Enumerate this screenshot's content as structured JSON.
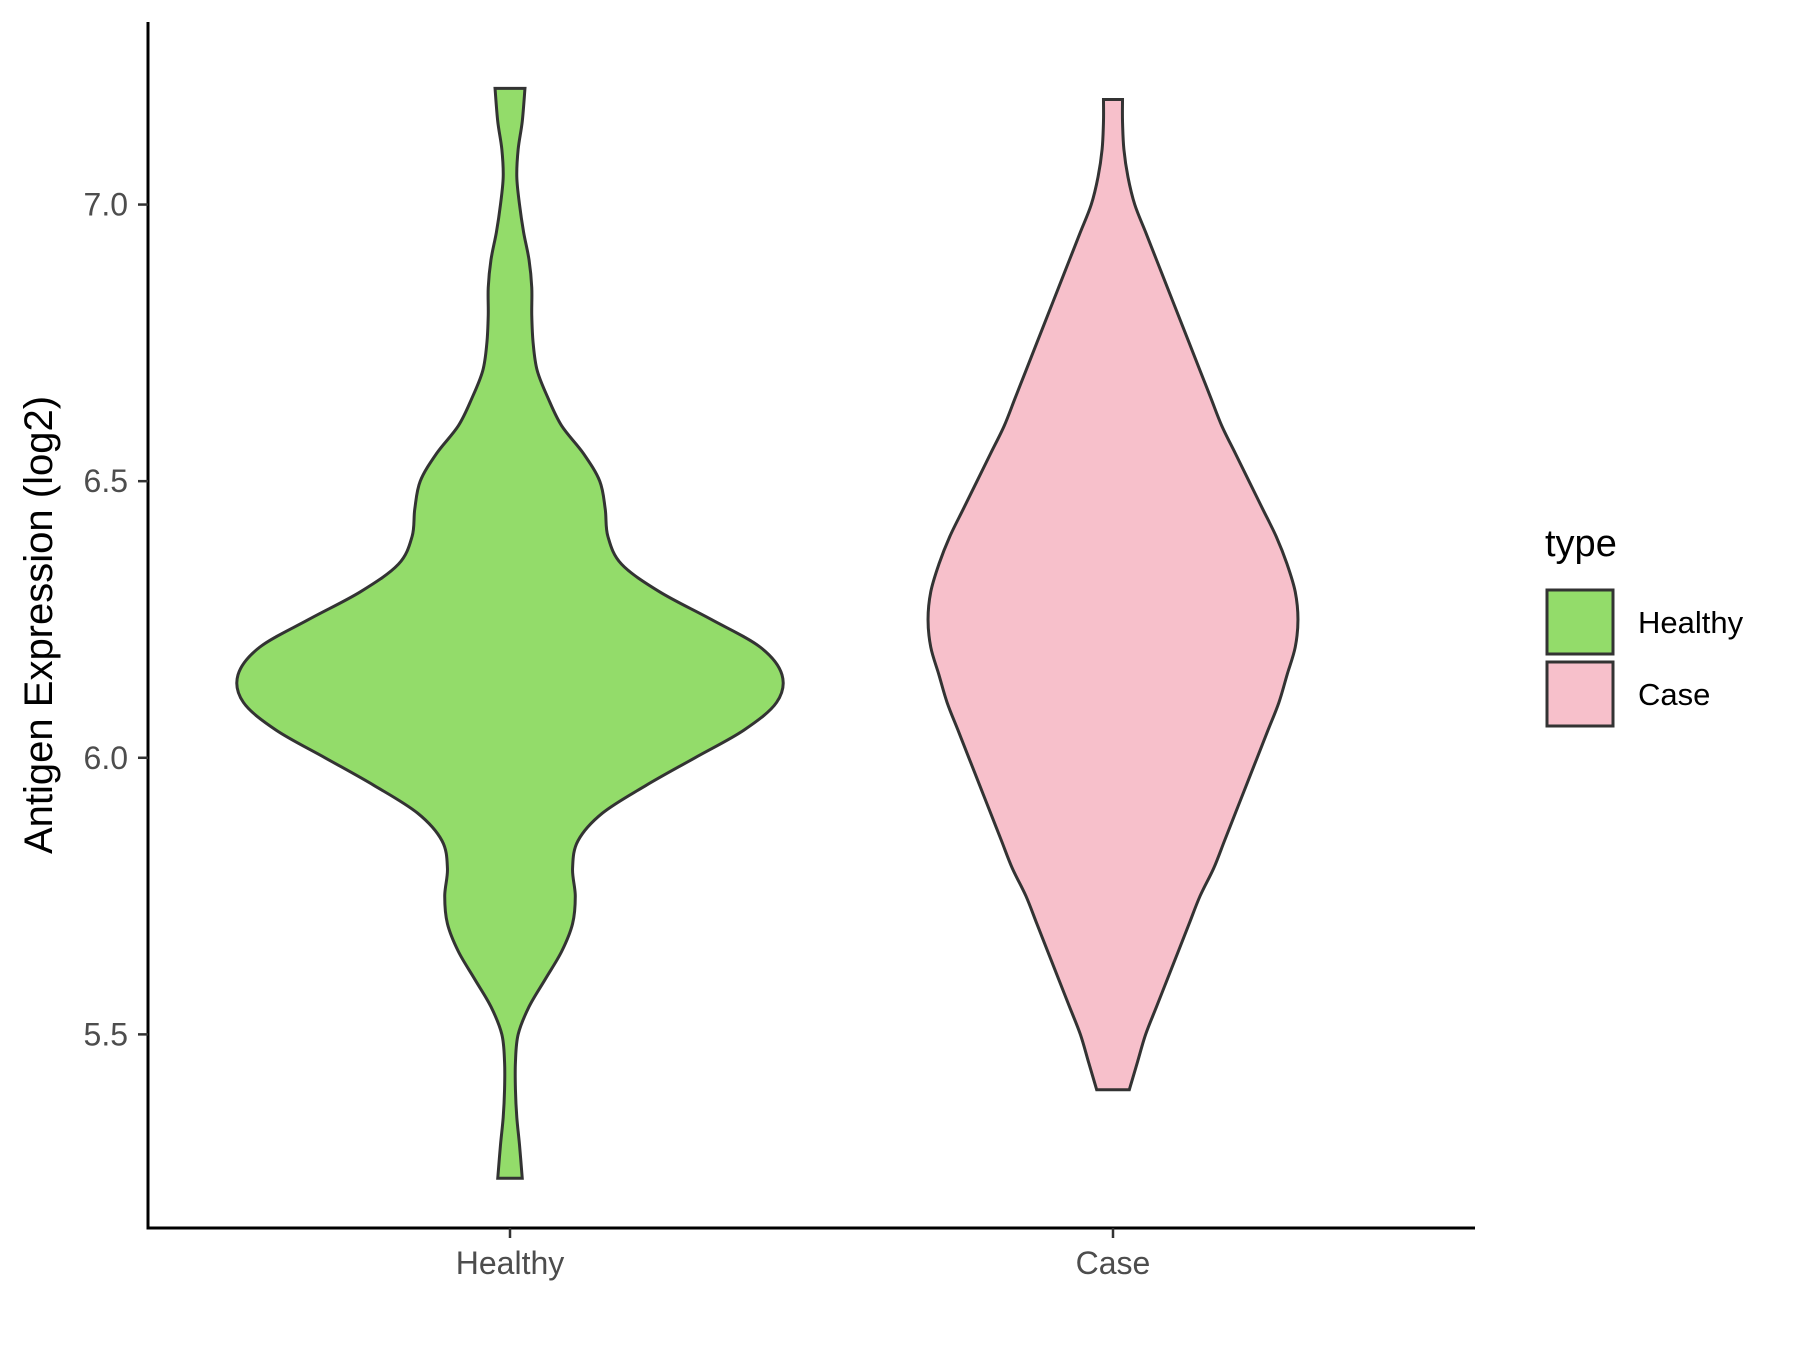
{
  "chart_data": {
    "type": "violin",
    "title": "",
    "xlabel": "",
    "ylabel": "Antigen Expression (log2)",
    "ylim": [
      5.15,
      7.33
    ],
    "y_ticks": [
      5.5,
      6.0,
      6.5,
      7.0
    ],
    "y_tick_labels": [
      "5.5",
      "6.0",
      "6.5",
      "7.0"
    ],
    "categories": [
      "Healthy",
      "Case"
    ],
    "grid": false,
    "legend": {
      "title": "type",
      "position": "right",
      "entries": [
        {
          "label": "Healthy",
          "color": "#93DC6A"
        },
        {
          "label": "Case",
          "color": "#F7C0CB"
        }
      ]
    },
    "series": [
      {
        "name": "Healthy",
        "color": "#93DC6A",
        "min": 5.24,
        "max": 7.21,
        "density": [
          [
            5.24,
            0.045
          ],
          [
            5.3,
            0.035
          ],
          [
            5.35,
            0.025
          ],
          [
            5.4,
            0.02
          ],
          [
            5.45,
            0.02
          ],
          [
            5.5,
            0.03
          ],
          [
            5.55,
            0.07
          ],
          [
            5.6,
            0.13
          ],
          [
            5.65,
            0.19
          ],
          [
            5.7,
            0.23
          ],
          [
            5.75,
            0.24
          ],
          [
            5.8,
            0.23
          ],
          [
            5.85,
            0.25
          ],
          [
            5.9,
            0.34
          ],
          [
            5.95,
            0.5
          ],
          [
            6.0,
            0.68
          ],
          [
            6.05,
            0.86
          ],
          [
            6.1,
            0.98
          ],
          [
            6.15,
            1.0
          ],
          [
            6.2,
            0.92
          ],
          [
            6.25,
            0.74
          ],
          [
            6.3,
            0.55
          ],
          [
            6.35,
            0.41
          ],
          [
            6.4,
            0.36
          ],
          [
            6.45,
            0.35
          ],
          [
            6.5,
            0.33
          ],
          [
            6.55,
            0.27
          ],
          [
            6.6,
            0.19
          ],
          [
            6.65,
            0.14
          ],
          [
            6.7,
            0.1
          ],
          [
            6.75,
            0.085
          ],
          [
            6.8,
            0.08
          ],
          [
            6.85,
            0.08
          ],
          [
            6.9,
            0.07
          ],
          [
            6.95,
            0.05
          ],
          [
            7.0,
            0.035
          ],
          [
            7.05,
            0.025
          ],
          [
            7.1,
            0.03
          ],
          [
            7.15,
            0.045
          ],
          [
            7.21,
            0.055
          ]
        ]
      },
      {
        "name": "Case",
        "color": "#F7C0CB",
        "min": 5.4,
        "max": 7.19,
        "density": [
          [
            5.4,
            0.06
          ],
          [
            5.45,
            0.09
          ],
          [
            5.5,
            0.12
          ],
          [
            5.55,
            0.16
          ],
          [
            5.6,
            0.2
          ],
          [
            5.65,
            0.24
          ],
          [
            5.7,
            0.28
          ],
          [
            5.75,
            0.32
          ],
          [
            5.8,
            0.37
          ],
          [
            5.85,
            0.41
          ],
          [
            5.9,
            0.45
          ],
          [
            5.95,
            0.49
          ],
          [
            6.0,
            0.53
          ],
          [
            6.05,
            0.57
          ],
          [
            6.1,
            0.61
          ],
          [
            6.15,
            0.64
          ],
          [
            6.2,
            0.67
          ],
          [
            6.25,
            0.68
          ],
          [
            6.3,
            0.67
          ],
          [
            6.35,
            0.64
          ],
          [
            6.4,
            0.6
          ],
          [
            6.45,
            0.55
          ],
          [
            6.5,
            0.5
          ],
          [
            6.55,
            0.45
          ],
          [
            6.6,
            0.4
          ],
          [
            6.65,
            0.36
          ],
          [
            6.7,
            0.32
          ],
          [
            6.75,
            0.28
          ],
          [
            6.8,
            0.24
          ],
          [
            6.85,
            0.2
          ],
          [
            6.9,
            0.16
          ],
          [
            6.95,
            0.12
          ],
          [
            7.0,
            0.08
          ],
          [
            7.05,
            0.055
          ],
          [
            7.1,
            0.04
          ],
          [
            7.15,
            0.035
          ],
          [
            7.19,
            0.035
          ]
        ]
      }
    ]
  }
}
